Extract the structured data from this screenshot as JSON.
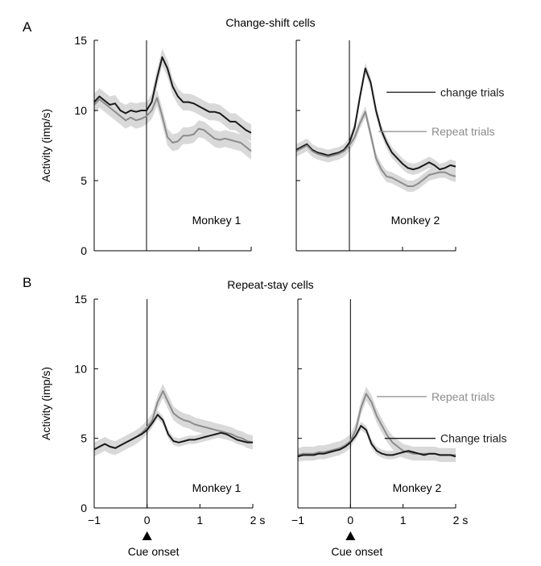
{
  "panels": [
    {
      "letter": "A",
      "title": "Change-shift cells"
    },
    {
      "letter": "B",
      "title": "Repeat-stay cells"
    }
  ],
  "colors": {
    "change": "#1a1a1a",
    "repeat": "#8c8c8c",
    "band": "#d9d9d9",
    "axis": "#000000"
  },
  "chart_data": [
    {
      "type": "line",
      "panel": "A",
      "title": "Change-shift cells",
      "subplot_label": "Monkey 1",
      "ylabel": "Activity (imp/s)",
      "xlabel": "",
      "xlim": [
        -1,
        2
      ],
      "ylim": [
        0,
        15
      ],
      "yticks": [
        0,
        5,
        10,
        15
      ],
      "yticklabels": [
        "0",
        "5",
        "10",
        "15"
      ],
      "xticks": [
        -1,
        0,
        1,
        2
      ],
      "xticklabels": [
        "",
        "",
        "",
        ""
      ],
      "cue_onset_line": 0,
      "legend": [],
      "series": [
        {
          "key": "change",
          "band": 0.6,
          "x": [
            -1,
            -0.9,
            -0.8,
            -0.7,
            -0.6,
            -0.5,
            -0.4,
            -0.3,
            -0.2,
            -0.1,
            0,
            0.1,
            0.2,
            0.3,
            0.4,
            0.5,
            0.6,
            0.7,
            0.8,
            0.9,
            1,
            1.1,
            1.2,
            1.3,
            1.4,
            1.5,
            1.6,
            1.7,
            1.8,
            1.9,
            2
          ],
          "y": [
            10.6,
            11.0,
            10.7,
            10.4,
            10.5,
            10.0,
            9.8,
            10.0,
            9.9,
            10.0,
            10.0,
            10.6,
            12.3,
            13.8,
            13.0,
            11.7,
            11.0,
            10.6,
            10.6,
            10.5,
            10.3,
            10.1,
            9.9,
            9.9,
            9.8,
            9.5,
            9.2,
            9.2,
            8.9,
            8.6,
            8.4
          ]
        },
        {
          "key": "repeat",
          "band": 0.6,
          "x": [
            -1,
            -0.9,
            -0.8,
            -0.7,
            -0.6,
            -0.5,
            -0.4,
            -0.3,
            -0.2,
            -0.1,
            0,
            0.1,
            0.2,
            0.3,
            0.4,
            0.5,
            0.6,
            0.7,
            0.8,
            0.9,
            1,
            1.1,
            1.2,
            1.3,
            1.4,
            1.5,
            1.6,
            1.7,
            1.8,
            1.9,
            2
          ],
          "y": [
            10.4,
            10.8,
            10.5,
            10.2,
            9.9,
            9.6,
            9.3,
            9.5,
            9.3,
            9.4,
            9.6,
            10.0,
            10.9,
            9.6,
            8.1,
            7.7,
            7.8,
            8.2,
            8.2,
            8.3,
            8.7,
            8.6,
            8.3,
            8.0,
            7.9,
            8.0,
            7.9,
            7.8,
            7.7,
            7.4,
            7.1
          ]
        }
      ]
    },
    {
      "type": "line",
      "panel": "A",
      "title": "",
      "subplot_label": "Monkey 2",
      "ylabel": "",
      "xlabel": "",
      "xlim": [
        -1,
        2
      ],
      "ylim": [
        0,
        15
      ],
      "yticks": [
        0,
        5,
        10,
        15
      ],
      "yticklabels": [
        "",
        "",
        "",
        ""
      ],
      "xticks": [
        -1,
        0,
        1,
        2
      ],
      "xticklabels": [
        "",
        "",
        "",
        ""
      ],
      "cue_onset_line": 0,
      "legend": [
        {
          "key": "change",
          "label": "change trials",
          "x": 0.7,
          "y": 11.3
        },
        {
          "key": "repeat",
          "label": "Repeat trials",
          "x": 0.55,
          "y": 8.5
        }
      ],
      "series": [
        {
          "key": "change",
          "band": 0.4,
          "x": [
            -1,
            -0.9,
            -0.8,
            -0.7,
            -0.6,
            -0.5,
            -0.4,
            -0.3,
            -0.2,
            -0.1,
            0,
            0.1,
            0.2,
            0.3,
            0.4,
            0.5,
            0.6,
            0.7,
            0.8,
            0.9,
            1,
            1.1,
            1.2,
            1.3,
            1.4,
            1.5,
            1.6,
            1.7,
            1.8,
            1.9,
            2
          ],
          "y": [
            7.2,
            7.4,
            7.6,
            7.2,
            7.0,
            6.9,
            6.8,
            6.9,
            7.0,
            7.2,
            7.7,
            8.8,
            11.0,
            13.0,
            12.0,
            10.0,
            8.6,
            7.7,
            7.0,
            6.6,
            6.2,
            5.9,
            5.8,
            5.9,
            6.1,
            6.3,
            6.1,
            5.8,
            5.9,
            6.1,
            6.0
          ]
        },
        {
          "key": "repeat",
          "band": 0.4,
          "x": [
            -1,
            -0.9,
            -0.8,
            -0.7,
            -0.6,
            -0.5,
            -0.4,
            -0.3,
            -0.2,
            -0.1,
            0,
            0.1,
            0.2,
            0.3,
            0.4,
            0.5,
            0.6,
            0.7,
            0.8,
            0.9,
            1,
            1.1,
            1.2,
            1.3,
            1.4,
            1.5,
            1.6,
            1.7,
            1.8,
            1.9,
            2
          ],
          "y": [
            7.1,
            7.3,
            7.5,
            7.1,
            6.9,
            6.8,
            6.7,
            6.8,
            6.9,
            7.1,
            7.5,
            8.1,
            9.1,
            9.9,
            8.3,
            6.6,
            5.8,
            5.3,
            5.2,
            5.0,
            4.8,
            4.6,
            4.6,
            4.8,
            5.1,
            5.4,
            5.5,
            5.6,
            5.6,
            5.4,
            5.3
          ]
        }
      ]
    },
    {
      "type": "line",
      "panel": "B",
      "title": "Repeat-stay cells",
      "subplot_label": "Monkey 1",
      "ylabel": "Activity (imp/s)",
      "xlabel": "Cue onset",
      "xlim": [
        -1,
        2
      ],
      "ylim": [
        0,
        15
      ],
      "yticks": [
        0,
        5,
        10,
        15
      ],
      "yticklabels": [
        "0",
        "5",
        "10",
        "15"
      ],
      "xticks": [
        -1,
        0,
        1,
        2
      ],
      "xticklabels": [
        "−1",
        "0",
        "1",
        "2 s"
      ],
      "cue_onset_line": 0,
      "legend": [],
      "series": [
        {
          "key": "repeat",
          "band": 0.5,
          "x": [
            -1,
            -0.9,
            -0.8,
            -0.7,
            -0.6,
            -0.5,
            -0.4,
            -0.3,
            -0.2,
            -0.1,
            0,
            0.1,
            0.2,
            0.3,
            0.4,
            0.5,
            0.6,
            0.7,
            0.8,
            0.9,
            1,
            1.1,
            1.2,
            1.3,
            1.4,
            1.5,
            1.6,
            1.7,
            1.8,
            1.9,
            2
          ],
          "y": [
            4.2,
            4.4,
            4.6,
            4.4,
            4.3,
            4.5,
            4.7,
            4.9,
            5.1,
            5.4,
            5.8,
            6.3,
            7.6,
            8.4,
            7.6,
            6.8,
            6.5,
            6.3,
            6.2,
            6.0,
            5.9,
            5.8,
            5.7,
            5.6,
            5.5,
            5.4,
            5.3,
            5.1,
            5.0,
            4.8,
            4.7
          ]
        },
        {
          "key": "change",
          "band": 0.3,
          "x": [
            -1,
            -0.9,
            -0.8,
            -0.7,
            -0.6,
            -0.5,
            -0.4,
            -0.3,
            -0.2,
            -0.1,
            0,
            0.1,
            0.2,
            0.3,
            0.4,
            0.5,
            0.6,
            0.7,
            0.8,
            0.9,
            1,
            1.1,
            1.2,
            1.3,
            1.4,
            1.5,
            1.6,
            1.7,
            1.8,
            1.9,
            2
          ],
          "y": [
            4.2,
            4.4,
            4.6,
            4.4,
            4.3,
            4.5,
            4.7,
            4.9,
            5.1,
            5.3,
            5.6,
            6.1,
            6.7,
            6.3,
            5.3,
            4.8,
            4.7,
            4.8,
            4.9,
            4.9,
            5.0,
            5.1,
            5.2,
            5.3,
            5.4,
            5.3,
            5.1,
            4.9,
            4.8,
            4.7,
            4.7
          ]
        }
      ]
    },
    {
      "type": "line",
      "panel": "B",
      "title": "",
      "subplot_label": "Monkey 2",
      "ylabel": "",
      "xlabel": "Cue onset",
      "xlim": [
        -1,
        2
      ],
      "ylim": [
        0,
        15
      ],
      "yticks": [
        0,
        5,
        10,
        15
      ],
      "yticklabels": [
        "",
        "",
        "",
        ""
      ],
      "xticks": [
        -1,
        0,
        1,
        2
      ],
      "xticklabels": [
        "−1",
        "0",
        "1",
        "2 s"
      ],
      "cue_onset_line": 0,
      "legend": [
        {
          "key": "repeat",
          "label": "Repeat trials",
          "x": 0.5,
          "y": 8.0
        },
        {
          "key": "change",
          "label": "Change trials",
          "x": 0.65,
          "y": 5.0
        }
      ],
      "series": [
        {
          "key": "repeat",
          "band": 0.5,
          "x": [
            -1,
            -0.9,
            -0.8,
            -0.7,
            -0.6,
            -0.5,
            -0.4,
            -0.3,
            -0.2,
            -0.1,
            0,
            0.1,
            0.2,
            0.3,
            0.4,
            0.5,
            0.6,
            0.7,
            0.8,
            0.9,
            1,
            1.1,
            1.2,
            1.3,
            1.4,
            1.5,
            1.6,
            1.7,
            1.8,
            1.9,
            2
          ],
          "y": [
            3.8,
            3.9,
            3.9,
            3.9,
            4.0,
            4.0,
            4.1,
            4.2,
            4.3,
            4.5,
            4.8,
            5.6,
            7.2,
            8.2,
            7.6,
            6.6,
            5.9,
            5.2,
            4.7,
            4.4,
            4.1,
            4.0,
            3.9,
            3.9,
            3.9,
            3.9,
            3.9,
            3.8,
            3.8,
            3.8,
            3.8
          ]
        },
        {
          "key": "change",
          "band": 0.3,
          "x": [
            -1,
            -0.9,
            -0.8,
            -0.7,
            -0.6,
            -0.5,
            -0.4,
            -0.3,
            -0.2,
            -0.1,
            0,
            0.1,
            0.2,
            0.3,
            0.4,
            0.5,
            0.6,
            0.7,
            0.8,
            0.9,
            1,
            1.1,
            1.2,
            1.3,
            1.4,
            1.5,
            1.6,
            1.7,
            1.8,
            1.9,
            2
          ],
          "y": [
            3.7,
            3.8,
            3.8,
            3.8,
            3.9,
            3.9,
            4.0,
            4.1,
            4.2,
            4.4,
            4.7,
            5.2,
            5.9,
            5.6,
            4.6,
            4.1,
            3.9,
            3.8,
            3.8,
            3.9,
            4.0,
            4.1,
            4.0,
            3.9,
            3.8,
            3.9,
            3.9,
            3.8,
            3.8,
            3.8,
            3.7
          ]
        }
      ]
    }
  ]
}
